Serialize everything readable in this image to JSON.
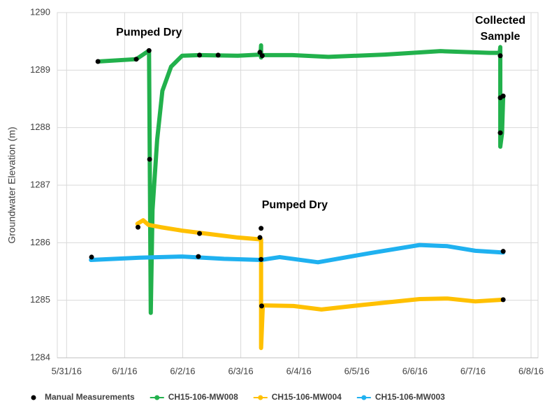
{
  "chart_data": {
    "type": "scatter",
    "y_label": "Groundwater Elevation (m)",
    "annotations": [
      {
        "text": "Pumped Dry",
        "x": 42522.42,
        "y": 1289.65
      },
      {
        "text": "Pumped Dry",
        "x": 42524.93,
        "y": 1286.65
      },
      {
        "text": "Collected Sample",
        "x": 42528.47,
        "y": 1289.85
      }
    ],
    "xlim": [
      42520.84,
      42529.12
    ],
    "ylim": [
      1284,
      1290
    ],
    "xticks": [
      {
        "value": 42521,
        "label": "5/31/16"
      },
      {
        "value": 42522,
        "label": "6/1/16"
      },
      {
        "value": 42523,
        "label": "6/2/16"
      },
      {
        "value": 42524,
        "label": "6/3/16"
      },
      {
        "value": 42525,
        "label": "6/4/16"
      },
      {
        "value": 42526,
        "label": "6/5/16"
      },
      {
        "value": 42527,
        "label": "6/6/16"
      },
      {
        "value": 42528,
        "label": "6/7/16"
      },
      {
        "value": 42529,
        "label": "6/8/16"
      }
    ],
    "yticks": [
      1284,
      1285,
      1286,
      1287,
      1288,
      1289,
      1290
    ],
    "grid": true,
    "legend": "bottom",
    "series": [
      {
        "name": "CH15-106-MW008",
        "color": "#22b14c",
        "mode": "line",
        "x": [
          42521.54,
          42522.2,
          42522.42,
          42522.45,
          42522.48,
          42522.56,
          42522.65,
          42522.8,
          42522.99,
          42523.29,
          42523.95,
          42524.34,
          42524.35,
          42524.35,
          42524.36,
          42524.89,
          42525.51,
          42526.48,
          42527.44,
          42528.28,
          42528.46,
          42528.47,
          42528.47,
          42528.5,
          42528.52
        ],
        "values": [
          1289.15,
          1289.19,
          1289.34,
          1284.78,
          1286.57,
          1287.79,
          1288.64,
          1289.06,
          1289.25,
          1289.26,
          1289.25,
          1289.27,
          1289.43,
          1289.22,
          1289.26,
          1289.26,
          1289.23,
          1289.27,
          1289.33,
          1289.3,
          1289.3,
          1289.4,
          1287.67,
          1287.9,
          1288.55
        ]
      },
      {
        "name": "CH15-106-MW004",
        "color": "#ffc000",
        "mode": "line",
        "x": [
          42522.22,
          42522.32,
          42522.41,
          42522.62,
          42522.99,
          42523.47,
          42523.95,
          42524.31,
          42524.35,
          42524.35,
          42524.38,
          42524.91,
          42525.39,
          42526.11,
          42527.08,
          42527.56,
          42528.04,
          42528.52
        ],
        "values": [
          1286.33,
          1286.39,
          1286.31,
          1286.27,
          1286.21,
          1286.15,
          1286.09,
          1286.06,
          1286.06,
          1284.17,
          1284.91,
          1284.9,
          1284.84,
          1284.92,
          1285.02,
          1285.03,
          1284.98,
          1285.01
        ]
      },
      {
        "name": "CH15-106-MW003",
        "color": "#1fb1f0",
        "mode": "line",
        "x": [
          42521.42,
          42522.26,
          42522.99,
          42523.71,
          42524.35,
          42524.67,
          42525.33,
          42526.23,
          42527.08,
          42527.56,
          42528.04,
          42528.52
        ],
        "values": [
          1285.7,
          1285.74,
          1285.76,
          1285.72,
          1285.7,
          1285.75,
          1285.66,
          1285.82,
          1285.96,
          1285.94,
          1285.86,
          1285.83
        ]
      },
      {
        "name": "Manual Measurements",
        "color": "#000000",
        "mode": "markers",
        "x": [
          42521.43,
          42521.54,
          42522.2,
          42522.23,
          42522.42,
          42522.43,
          42523.29,
          42523.29,
          42523.27,
          42523.61,
          42524.33,
          42524.37,
          42524.35,
          42524.33,
          42524.35,
          42524.36,
          42528.47,
          42528.47,
          42528.47,
          42528.52,
          42528.52,
          42528.52
        ],
        "values": [
          1285.75,
          1289.15,
          1289.19,
          1286.27,
          1289.34,
          1287.45,
          1289.26,
          1286.16,
          1285.76,
          1289.26,
          1289.31,
          1289.25,
          1286.25,
          1286.09,
          1285.71,
          1284.9,
          1289.25,
          1288.52,
          1287.91,
          1288.55,
          1285.85,
          1285.01
        ]
      }
    ]
  }
}
